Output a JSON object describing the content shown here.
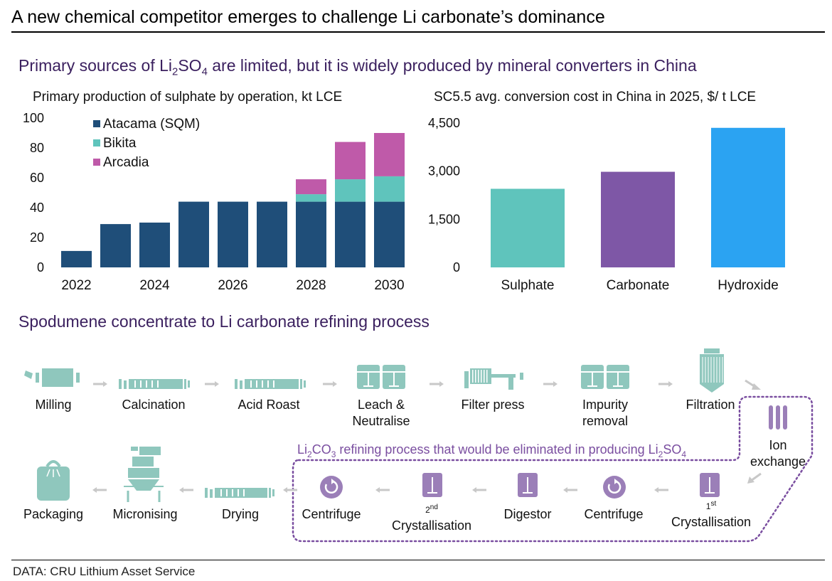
{
  "title": "A new chemical competitor emerges to challenge Li carbonate’s dominance",
  "section1": {
    "title_before": "Primary sources of Li",
    "title_sub1": "2",
    "title_mid": "SO",
    "title_sub2": "4",
    "title_after": " are limited, but it is widely produced by mineral converters in China"
  },
  "section2": {
    "title": "Spodumene concentrate to Li carbonate refining process"
  },
  "colors": {
    "atacama": "#1f4e79",
    "bikita": "#5fc4bc",
    "arcadia": "#bf5aa9",
    "sulphate": "#5fc4bc",
    "carbonate": "#7e57a6",
    "hydroxide": "#2ba3f2",
    "process_teal": "#8fc7bd",
    "process_purple": "#9b7fb8",
    "arrow_grey": "#c8c8c8",
    "dotted_border": "#7a4ea0"
  },
  "chart_data": [
    {
      "type": "bar",
      "stacked": true,
      "title": "Primary production of sulphate by operation, kt LCE",
      "categories": [
        "2022",
        "2023",
        "2024",
        "2025",
        "2026",
        "2027",
        "2028",
        "2029",
        "2030"
      ],
      "x_tick_labels": [
        "2022",
        "",
        "2024",
        "",
        "2026",
        "",
        "2028",
        "",
        "2030"
      ],
      "series": [
        {
          "name": "Atacama (SQM)",
          "values": [
            11,
            29,
            30,
            44,
            44,
            44,
            44,
            44,
            44
          ]
        },
        {
          "name": "Bikita",
          "values": [
            0,
            0,
            0,
            0,
            0,
            0,
            5,
            15,
            17
          ]
        },
        {
          "name": "Arcadia",
          "values": [
            0,
            0,
            0,
            0,
            0,
            0,
            10,
            25,
            29
          ]
        }
      ],
      "ylim": [
        0,
        100
      ],
      "y_ticks": [
        "0",
        "20",
        "40",
        "60",
        "80",
        "100"
      ],
      "grid": false,
      "legend": "top-left"
    },
    {
      "type": "bar",
      "title": "SC5.5 avg. conversion cost in China in 2025, $/ t LCE",
      "categories": [
        "Sulphate",
        "Carbonate",
        "Hydroxide"
      ],
      "values": [
        2450,
        2980,
        4350
      ],
      "ylim": [
        0,
        4500
      ],
      "y_ticks": [
        "0",
        "1,500",
        "3,000",
        "4,500"
      ],
      "grid": false
    }
  ],
  "process": {
    "steps": [
      {
        "id": "milling",
        "lines": [
          "Milling"
        ]
      },
      {
        "id": "calcination",
        "lines": [
          "Calcination"
        ]
      },
      {
        "id": "acid-roast",
        "lines": [
          "Acid Roast"
        ]
      },
      {
        "id": "leach",
        "lines": [
          "Leach &",
          "Neutralise"
        ]
      },
      {
        "id": "filter-press",
        "lines": [
          "Filter press"
        ]
      },
      {
        "id": "impurity",
        "lines": [
          "Impurity",
          "removal"
        ]
      },
      {
        "id": "filtration",
        "lines": [
          "Filtration"
        ]
      },
      {
        "id": "ion-exchange",
        "lines": [
          "Ion",
          "exchange"
        ]
      },
      {
        "id": "crystallisation-1",
        "sup": "st",
        "sup_prefix": "1",
        "lines": [
          "Crystallisation"
        ]
      },
      {
        "id": "centrifuge-1",
        "lines": [
          "Centrifuge"
        ]
      },
      {
        "id": "digestor",
        "lines": [
          "Digestor"
        ]
      },
      {
        "id": "crystallisation-2",
        "sup": "nd",
        "sup_prefix": "2",
        "lines": [
          "Crystallisation"
        ]
      },
      {
        "id": "centrifuge-2",
        "lines": [
          "Centrifuge"
        ]
      },
      {
        "id": "drying",
        "lines": [
          "Drying"
        ]
      },
      {
        "id": "micronising",
        "lines": [
          "Micronising"
        ]
      },
      {
        "id": "packaging",
        "lines": [
          "Packaging"
        ]
      }
    ],
    "eliminated_label_before": "Li",
    "eliminated_sub1": "2",
    "eliminated_mid1": "CO",
    "eliminated_sub2": "3",
    "eliminated_mid2": " refining process that would be eliminated in producing Li",
    "eliminated_sub3": "2",
    "eliminated_mid3": "SO",
    "eliminated_sub4": "4"
  },
  "footer": {
    "source": "DATA: CRU Lithium Asset Service"
  }
}
